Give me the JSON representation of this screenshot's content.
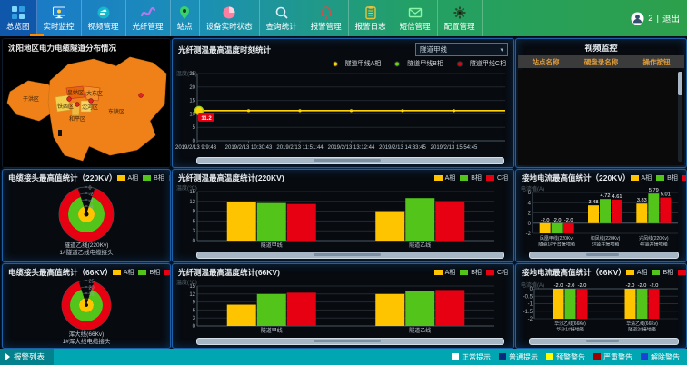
{
  "nav": {
    "items": [
      {
        "label": "总览图",
        "icon": "overview-grid-icon",
        "active": true
      },
      {
        "label": "实时监控",
        "icon": "monitor-icon",
        "active": false
      },
      {
        "label": "视频管理",
        "icon": "camera-icon",
        "active": false
      },
      {
        "label": "光纤管理",
        "icon": "fiber-wave-icon",
        "active": false
      },
      {
        "label": "站点",
        "icon": "location-pin-icon",
        "active": false
      },
      {
        "label": "设备实时状态",
        "icon": "device-status-icon",
        "active": false
      },
      {
        "label": "查询统计",
        "icon": "search-stats-icon",
        "active": false
      },
      {
        "label": "报警管理",
        "icon": "alarm-bell-icon",
        "active": false
      },
      {
        "label": "报警日志",
        "icon": "alarm-log-icon",
        "active": false
      },
      {
        "label": "短信管理",
        "icon": "sms-mail-icon",
        "active": false
      },
      {
        "label": "配置管理",
        "icon": "settings-gear-icon",
        "active": false
      }
    ],
    "user": {
      "count": "2",
      "separator": "|",
      "logout_label": "退出"
    }
  },
  "map_panel": {
    "title": "沈阳地区电力电缆隧道分布情况",
    "districts": [
      "于洪区",
      "皇姑区",
      "大东区",
      "铁西区",
      "沈河区",
      "和平区",
      "东陵区"
    ]
  },
  "fiber_time_panel": {
    "title": "光纤测温最高温度时刻统计",
    "selector_value": "隧道甲线",
    "ylabel": "温度(℃)",
    "legend": [
      {
        "label": "隧道甲线A相",
        "color": "#ffd400"
      },
      {
        "label": "隧道甲线B相",
        "color": "#62d80e"
      },
      {
        "label": "隧道甲线C相",
        "color": "#e60012"
      }
    ],
    "chart": {
      "type": "line",
      "x": [
        "2019/2/13 9:9:43",
        "2019/2/13 10:30:43",
        "2019/2/13 11:51:44",
        "2019/2/13 13:12:44",
        "2019/2/13 14:33:45",
        "2019/2/13 15:54:45"
      ],
      "yticks": [
        25,
        20,
        15,
        10,
        5,
        0
      ],
      "ylim": [
        0,
        25
      ],
      "series": [
        {
          "name": "隧道甲线A相",
          "color": "#ffd400",
          "values": [
            11.2,
            11.2,
            11.2,
            11.2,
            11.2,
            11.2
          ]
        },
        {
          "name": "隧道甲线B相",
          "color": "#62d80e",
          "values": [
            11.2,
            11.2,
            11.2,
            11.2,
            11.2,
            11.2
          ]
        },
        {
          "name": "隧道甲线C相",
          "color": "#e60012",
          "values": [
            11.2,
            11.2,
            11.2,
            11.2,
            11.2,
            11.2
          ]
        }
      ],
      "first_point_label": "11.2"
    }
  },
  "video_panel": {
    "title": "视频监控",
    "columns": [
      "站点名称",
      "硬盘录名称",
      "操作按钮"
    ]
  },
  "joint220_panel": {
    "title": "电缆接头最高值统计（220KV）",
    "legend": [
      {
        "label": "A相",
        "color": "#ffc400"
      },
      {
        "label": "B相",
        "color": "#52c41a"
      },
      {
        "label": "C相",
        "color": "#e60012"
      }
    ],
    "gauge": {
      "ticks": [
        "0",
        "-2",
        "-4",
        "-6"
      ],
      "rings": [
        {
          "name": "C相",
          "color": "#e60012"
        },
        {
          "name": "B相",
          "color": "#52c41a"
        },
        {
          "name": "A相",
          "color": "#ffc400"
        }
      ],
      "caption": [
        "隧道乙线(220Kv)",
        "1#隧道乙线电缆接头"
      ]
    }
  },
  "fiber220_panel": {
    "title": "光纤测温最高温度统计(220KV)",
    "ylabel": "温度(℃)",
    "legend": [
      {
        "label": "A相",
        "color": "#ffc400"
      },
      {
        "label": "B相",
        "color": "#52c41a"
      },
      {
        "label": "C相",
        "color": "#e60012"
      }
    ],
    "chart": {
      "type": "bar",
      "categories": [
        "隧道甲线",
        "隧道乙线"
      ],
      "yticks": [
        15,
        12,
        9,
        6,
        3,
        0
      ],
      "ylim": [
        0,
        15
      ],
      "series": [
        {
          "name": "A相",
          "color": "#ffc400",
          "values": [
            "11.8",
            "9"
          ]
        },
        {
          "name": "B相",
          "color": "#52c41a",
          "values": [
            "11.5",
            "13"
          ]
        },
        {
          "name": "C相",
          "color": "#e60012",
          "values": [
            "11.2",
            "12"
          ]
        }
      ],
      "show_values": false
    }
  },
  "ground220_panel": {
    "title": "接地电流最高值统计（220KV）",
    "ylabel": "电流值(A)",
    "legend": [
      {
        "label": "A相",
        "color": "#ffc400"
      },
      {
        "label": "B相",
        "color": "#52c41a"
      },
      {
        "label": "C相",
        "color": "#e60012"
      }
    ],
    "chart": {
      "type": "bar",
      "categories": [
        [
          "凤凰甲线(220Kv)",
          "隧道1#平台接地箱"
        ],
        [
          "和凤线(220Kv)",
          "2#竖井接地箱"
        ],
        [
          "兴凤线(220Kv)",
          "4#竖井接地箱"
        ]
      ],
      "yticks": [
        6,
        4,
        2,
        0,
        -2
      ],
      "ylim": [
        -2,
        6
      ],
      "series": [
        {
          "name": "A相",
          "color": "#ffc400",
          "values": [
            "-2.0",
            "3.48",
            "3.83"
          ]
        },
        {
          "name": "B相",
          "color": "#52c41a",
          "values": [
            "-2.0",
            "4.72",
            "5.79"
          ]
        },
        {
          "name": "C相",
          "color": "#e60012",
          "values": [
            "-2.0",
            "4.61",
            "5.01"
          ]
        }
      ],
      "show_values": true
    }
  },
  "joint66_panel": {
    "title": "电缆接头最高值统计（66KV）",
    "legend": [
      {
        "label": "A相",
        "color": "#ffc400"
      },
      {
        "label": "B相",
        "color": "#52c41a"
      },
      {
        "label": "C相",
        "color": "#e60012"
      }
    ],
    "gauge": {
      "ticks": [
        "25",
        "20",
        "15"
      ],
      "rings": [
        {
          "name": "C相",
          "color": "#e60012"
        },
        {
          "name": "B相",
          "color": "#52c41a"
        },
        {
          "name": "A相",
          "color": "#ffc400"
        }
      ],
      "caption": [
        "浑大线(66Kv)",
        "1#浑大线电缆接头"
      ]
    }
  },
  "fiber66_panel": {
    "title": "光纤测温最高温度统计(66KV)",
    "ylabel": "温度(℃)",
    "legend": [
      {
        "label": "A相",
        "color": "#ffc400"
      },
      {
        "label": "B相",
        "color": "#52c41a"
      },
      {
        "label": "C相",
        "color": "#e60012"
      }
    ],
    "chart": {
      "type": "bar",
      "categories": [
        "隧道甲线",
        "隧道乙线"
      ],
      "yticks": [
        15,
        12,
        9,
        6,
        3,
        0
      ],
      "ylim": [
        0,
        15
      ],
      "series": [
        {
          "name": "A相",
          "color": "#ffc400",
          "values": [
            "8",
            "12"
          ]
        },
        {
          "name": "B相",
          "color": "#52c41a",
          "values": [
            "12",
            "13"
          ]
        },
        {
          "name": "C相",
          "color": "#e60012",
          "values": [
            "12.5",
            "13.5"
          ]
        }
      ],
      "show_values": false
    }
  },
  "ground66_panel": {
    "title": "接地电流最高值统计（66KV）",
    "ylabel": "电流值(A)",
    "legend": [
      {
        "label": "A相",
        "color": "#ffc400"
      },
      {
        "label": "B相",
        "color": "#52c41a"
      },
      {
        "label": "C相",
        "color": "#e60012"
      }
    ],
    "chart": {
      "type": "bar",
      "categories": [
        [
          "华沙乙线(66Kv)",
          "华沙1#接地箱"
        ],
        [
          "华清乙线(66Kv)",
          "隧道2#接地箱"
        ]
      ],
      "yticks": [
        0,
        -0.5,
        -1,
        -1.5,
        -2
      ],
      "ylim": [
        -2,
        0
      ],
      "series": [
        {
          "name": "A相",
          "color": "#ffc400",
          "values": [
            "-2.0",
            "-2.0"
          ]
        },
        {
          "name": "B相",
          "color": "#52c41a",
          "values": [
            "-2.0",
            "-2.0"
          ]
        },
        {
          "name": "C相",
          "color": "#e60012",
          "values": [
            "-2.0",
            "-2.0"
          ]
        }
      ],
      "show_values": true
    }
  },
  "status_bar": {
    "alarm_list_label": "报警列表",
    "legend": [
      {
        "label": "正常提示",
        "color": "#ffffff"
      },
      {
        "label": "普通提示",
        "color": "#0a2a7a"
      },
      {
        "label": "预警警告",
        "color": "#ffff00"
      },
      {
        "label": "严重警告",
        "color": "#9e0000"
      },
      {
        "label": "解除警告",
        "color": "#1a41d6"
      }
    ]
  }
}
